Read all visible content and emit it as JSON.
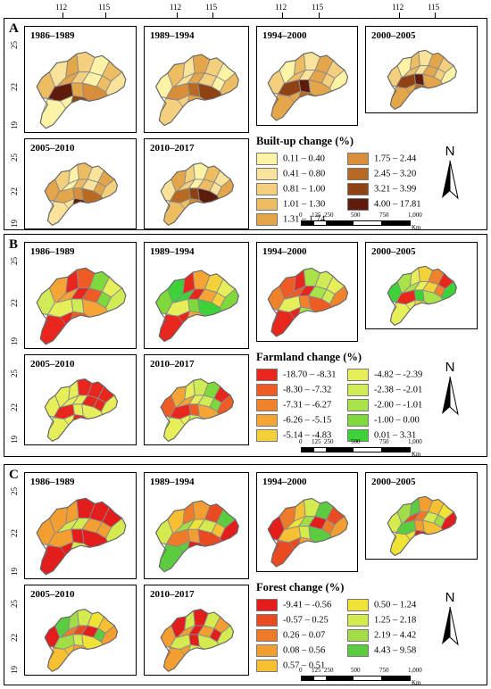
{
  "top_axis_ticks": [
    "112",
    "115"
  ],
  "y_ticks": [
    "25",
    "22",
    "19"
  ],
  "periods": [
    "1986–1989",
    "1989–1994",
    "1994–2000",
    "2000–2005",
    "2005–2010",
    "2010–2017"
  ],
  "north_label": "N",
  "scale": {
    "labels": [
      "0",
      "125",
      "250",
      "500",
      "750",
      "1,000"
    ],
    "unit": "Km"
  },
  "panels": [
    {
      "letter": "A",
      "legend_title": "Built-up change (%)",
      "legend": [
        {
          "label": "0.11 – 0.40",
          "color": "#fdf3a6"
        },
        {
          "label": "0.41 – 0.80",
          "color": "#f9e39a"
        },
        {
          "label": "0.81 – 1.00",
          "color": "#f3cf7e"
        },
        {
          "label": "1.01 – 1.30",
          "color": "#ecbd62"
        },
        {
          "label": "1.31 – 1.74",
          "color": "#e4a64a"
        },
        {
          "label": "1.75 – 2.44",
          "color": "#d88e3a"
        },
        {
          "label": "2.45 – 3.20",
          "color": "#b86a22"
        },
        {
          "label": "3.21 – 3.99",
          "color": "#8f4213"
        },
        {
          "label": "4.00 – 17.81",
          "color": "#5e1a0a"
        }
      ]
    },
    {
      "letter": "B",
      "legend_title": "Farmland change (%)",
      "legend": [
        {
          "label": "-18.70 – -8.31",
          "color": "#e8261d"
        },
        {
          "label": "-8.30 – -7.32",
          "color": "#ee5b25"
        },
        {
          "label": "-7.31 – -6.27",
          "color": "#f0822b"
        },
        {
          "label": "-6.26 – -5.15",
          "color": "#f4a535"
        },
        {
          "label": "-5.14 – -4.83",
          "color": "#f3d13b"
        },
        {
          "label": "-4.82 – -2.39",
          "color": "#e6ee5a"
        },
        {
          "label": "-2.38 – -2.01",
          "color": "#cfec56"
        },
        {
          "label": "-2.00 – -1.01",
          "color": "#a9e34a"
        },
        {
          "label": "-1.00 – 0.00",
          "color": "#7fd83c"
        },
        {
          "label": "0.01 – 3.31",
          "color": "#3dd23a"
        }
      ]
    },
    {
      "letter": "C",
      "legend_title": "Forest change (%)",
      "legend": [
        {
          "label": "-9.41 – -0.56",
          "color": "#e21d1b"
        },
        {
          "label": "-0.57 – 0.25",
          "color": "#ea4a22"
        },
        {
          "label": "0.26 – 0.07",
          "color": "#ef7a2a"
        },
        {
          "label": "0.08 – 0.56",
          "color": "#f39e31"
        },
        {
          "label": "0.57 – 0.51",
          "color": "#f6c032"
        },
        {
          "label": "0.50 – 1.24",
          "color": "#f1e336"
        },
        {
          "label": "1.25 – 2.18",
          "color": "#d5ea4f"
        },
        {
          "label": "2.19 – 4.42",
          "color": "#a2dd48"
        },
        {
          "label": "4.43 – 9.58",
          "color": "#5bcc3f"
        }
      ]
    }
  ]
}
